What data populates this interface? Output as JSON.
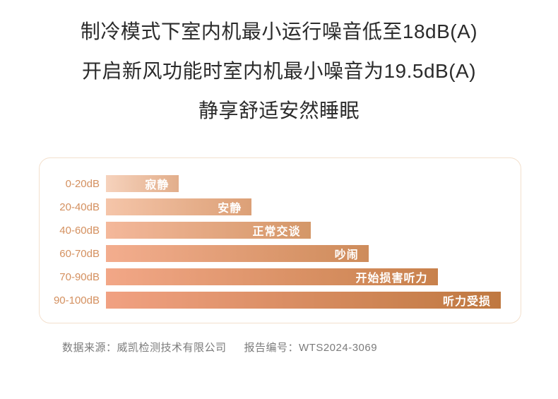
{
  "title": {
    "line1": "制冷模式下室内机最小运行噪音低至18dB(A)",
    "line2": "开启新风功能时室内机最小噪音为19.5dB(A)",
    "line3": "静享舒适安然睡眠"
  },
  "footer": {
    "source_label": "数据来源：威凯检测技术有限公司",
    "report_label": "报告编号：WTS2024-3069"
  },
  "colors": {
    "title_text": "#2b2b2b",
    "row_label_text": "#d4905f",
    "bar_label_text": "#ffffff",
    "card_border": "#f3e0cd",
    "footer_text": "#7b7b7b"
  },
  "chart_data": {
    "type": "bar",
    "orientation": "horizontal",
    "title": "",
    "xlabel": "",
    "ylabel": "",
    "xlim": [
      0,
      100
    ],
    "grid": false,
    "legend": false,
    "categories": [
      "0-20dB",
      "20-40dB",
      "40-60dB",
      "60-70dB",
      "70-90dB",
      "90-100dB"
    ],
    "values_db_max": [
      20,
      40,
      60,
      70,
      90,
      100
    ],
    "bar_labels": [
      "寂静",
      "安静",
      "正常交谈",
      "吵闹",
      "开始损害听力",
      "听力受损"
    ],
    "rows": [
      {
        "category": "0-20dB",
        "label": "寂静",
        "value_db_max": 20,
        "width_pct": 18.5,
        "color_start": "#f6d2bc",
        "color_end": "#e2ae8b"
      },
      {
        "category": "20-40dB",
        "label": "安静",
        "value_db_max": 40,
        "width_pct": 36.9,
        "color_start": "#f5c5a9",
        "color_end": "#dca077"
      },
      {
        "category": "40-60dB",
        "label": "正常交谈",
        "value_db_max": 60,
        "width_pct": 51.8,
        "color_start": "#f4b89b",
        "color_end": "#d49768"
      },
      {
        "category": "60-70dB",
        "label": "吵闹",
        "value_db_max": 70,
        "width_pct": 66.5,
        "color_start": "#f3ad8e",
        "color_end": "#ce8c5b"
      },
      {
        "category": "70-90dB",
        "label": "开始损害听力",
        "value_db_max": 90,
        "width_pct": 84.0,
        "color_start": "#f2a787",
        "color_end": "#c8814c"
      },
      {
        "category": "90-100dB",
        "label": "听力受损",
        "value_db_max": 100,
        "width_pct": 100,
        "color_start": "#f1a182",
        "color_end": "#bf7840"
      }
    ]
  }
}
